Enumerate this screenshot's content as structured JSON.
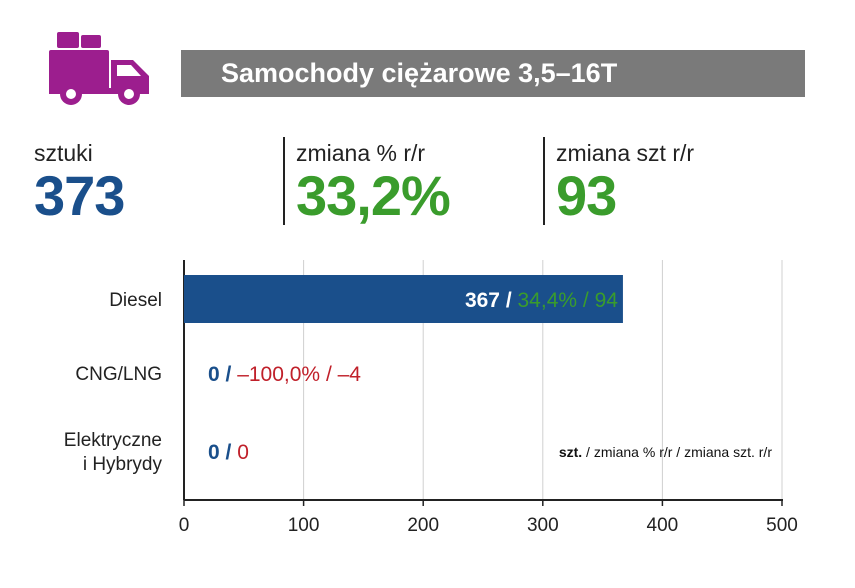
{
  "header": {
    "title": "Samochody ciężarowe 3,5–16T",
    "icon": "truck-icon",
    "icon_color": "#9c1e8e",
    "bar_color": "#7a7a7a"
  },
  "stats": [
    {
      "label": "sztuki",
      "value": "373",
      "color": "#1a4f8b"
    },
    {
      "label": "zmiana % r/r",
      "value": "33,2%",
      "color": "#3a9c2c"
    },
    {
      "label": "zmiana szt r/r",
      "value": "93",
      "color": "#3a9c2c"
    }
  ],
  "chart_data": {
    "type": "bar",
    "orientation": "horizontal",
    "categories": [
      "Diesel",
      "CNG/LNG",
      "Elektryczne i Hybrydy"
    ],
    "category_lines": [
      [
        "Diesel"
      ],
      [
        "CNG/LNG"
      ],
      [
        "Elektryczne",
        "i Hybrydy"
      ]
    ],
    "values": [
      367,
      0,
      0
    ],
    "xlim": [
      0,
      500
    ],
    "xticks": [
      0,
      100,
      200,
      300,
      400,
      500
    ],
    "grid": true,
    "bar_color": "#1a4f8b",
    "data_labels": [
      {
        "units": "367",
        "sep": " / ",
        "pct": "34,4%",
        "sep2": " / ",
        "change": "94",
        "change_color": "#3a9c2c",
        "inside": true
      },
      {
        "units": "0",
        "sep": " / ",
        "pct": "–100,0%",
        "sep2": " / ",
        "change": "–4",
        "change_color": "#c0202a",
        "inside": false
      },
      {
        "units": "0",
        "sep": " / ",
        "pct": "",
        "sep2": "",
        "change": "0",
        "change_color": "#c0202a",
        "inside": false
      }
    ],
    "legend": {
      "bold": "szt.",
      "rest": " / zmiana % r/r / zmiana szt. r/r"
    }
  }
}
